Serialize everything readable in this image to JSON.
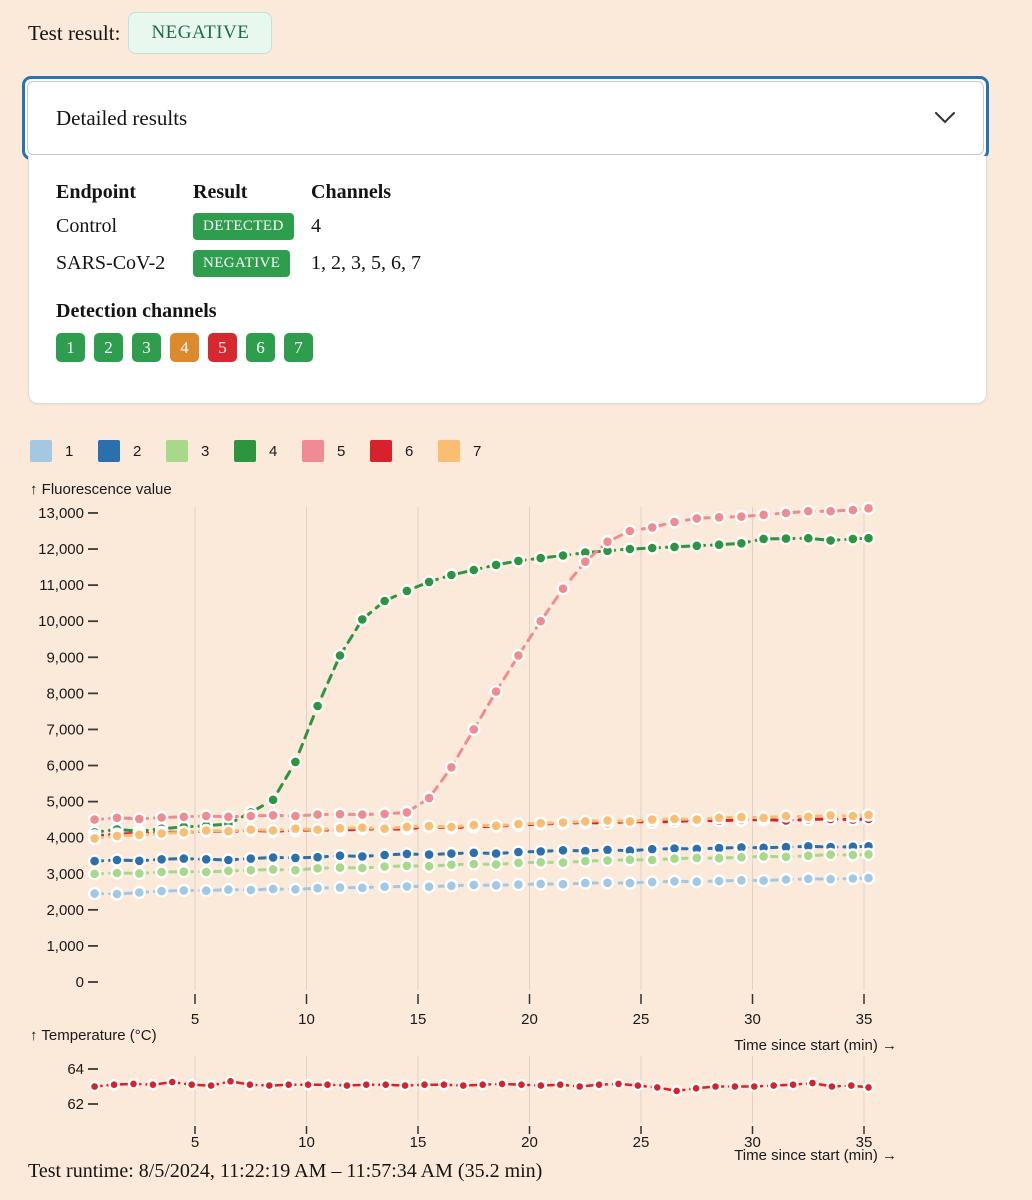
{
  "page": {
    "background": "#fbe9da"
  },
  "test_result": {
    "label": "Test result:",
    "value": "NEGATIVE",
    "badge_bg": "#e9f8ee",
    "badge_border": "#bfe5cc",
    "badge_text_color": "#1e6b45"
  },
  "details_panel": {
    "title": "Detailed results",
    "border_color": "#2474b5",
    "chevron_icon": "chevron-down"
  },
  "results_table": {
    "headers": [
      "Endpoint",
      "Result",
      "Channels"
    ],
    "result_badge_color": "#2e9e4e",
    "rows": [
      {
        "endpoint": "Control",
        "result": "DETECTED",
        "channels": "4"
      },
      {
        "endpoint": "SARS-CoV-2",
        "result": "NEGATIVE",
        "channels": "1, 2, 3, 5, 6, 7"
      }
    ]
  },
  "detection_channels": {
    "title": "Detection channels",
    "badges": [
      {
        "label": "1",
        "color": "#2e9e4e"
      },
      {
        "label": "2",
        "color": "#2e9e4e"
      },
      {
        "label": "3",
        "color": "#2e9e4e"
      },
      {
        "label": "4",
        "color": "#dd8a2e"
      },
      {
        "label": "5",
        "color": "#d7282f"
      },
      {
        "label": "6",
        "color": "#2e9e4e"
      },
      {
        "label": "7",
        "color": "#2e9e4e"
      }
    ]
  },
  "legend": {
    "items": [
      {
        "label": "1",
        "color": "#a3c8e3"
      },
      {
        "label": "2",
        "color": "#2c6fad"
      },
      {
        "label": "3",
        "color": "#a8d88a"
      },
      {
        "label": "4",
        "color": "#2d9440"
      },
      {
        "label": "5",
        "color": "#f08b92"
      },
      {
        "label": "6",
        "color": "#d7222b"
      },
      {
        "label": "7",
        "color": "#fbbd70"
      }
    ]
  },
  "chart_data": [
    {
      "type": "line",
      "ylabel": "↑ Fluorescence value",
      "xlabel": "Time since start (min) →",
      "grid": "vertical-only",
      "legend_position": "top-left",
      "ylim": [
        0,
        13500
      ],
      "yticks": [
        0,
        1000,
        2000,
        3000,
        4000,
        5000,
        6000,
        7000,
        8000,
        9000,
        10000,
        11000,
        12000,
        13000
      ],
      "xticks": [
        5,
        10,
        15,
        20,
        25,
        30,
        35
      ],
      "x": [
        0.5,
        1.5,
        2.5,
        3.5,
        4.5,
        5.5,
        6.5,
        7.5,
        8.5,
        9.5,
        10.5,
        11.5,
        12.5,
        13.5,
        14.5,
        15.5,
        16.5,
        17.5,
        18.5,
        19.5,
        20.5,
        21.5,
        22.5,
        23.5,
        24.5,
        25.5,
        26.5,
        27.5,
        28.5,
        29.5,
        30.5,
        31.5,
        32.5,
        33.5,
        34.5,
        35.2
      ],
      "series": [
        {
          "name": "1",
          "color": "#a3c8e3",
          "values": [
            2450,
            2440,
            2480,
            2520,
            2540,
            2530,
            2560,
            2550,
            2580,
            2570,
            2600,
            2620,
            2610,
            2640,
            2650,
            2640,
            2670,
            2690,
            2680,
            2700,
            2720,
            2710,
            2740,
            2750,
            2740,
            2770,
            2790,
            2780,
            2800,
            2820,
            2810,
            2840,
            2860,
            2850,
            2870,
            2880
          ]
        },
        {
          "name": "2",
          "color": "#2c6fad",
          "values": [
            3350,
            3380,
            3360,
            3400,
            3420,
            3400,
            3380,
            3420,
            3450,
            3440,
            3460,
            3500,
            3480,
            3520,
            3550,
            3530,
            3560,
            3580,
            3560,
            3600,
            3620,
            3650,
            3630,
            3660,
            3640,
            3680,
            3700,
            3690,
            3710,
            3730,
            3720,
            3740,
            3760,
            3740,
            3750,
            3760
          ]
        },
        {
          "name": "3",
          "color": "#a8d88a",
          "values": [
            3000,
            3020,
            3010,
            3050,
            3060,
            3050,
            3080,
            3100,
            3120,
            3100,
            3150,
            3170,
            3160,
            3200,
            3220,
            3210,
            3250,
            3270,
            3260,
            3300,
            3320,
            3310,
            3350,
            3370,
            3390,
            3380,
            3420,
            3440,
            3430,
            3460,
            3480,
            3470,
            3500,
            3530,
            3520,
            3540
          ]
        },
        {
          "name": "4",
          "color": "#2d9440",
          "values": [
            4150,
            4230,
            4180,
            4250,
            4300,
            4330,
            4380,
            4700,
            5050,
            6100,
            7650,
            9050,
            10050,
            10560,
            10840,
            11090,
            11280,
            11420,
            11560,
            11670,
            11750,
            11820,
            11900,
            11950,
            12000,
            12030,
            12060,
            12090,
            12120,
            12160,
            12280,
            12290,
            12300,
            12240,
            12280,
            12300
          ]
        },
        {
          "name": "5",
          "color": "#f08b92",
          "values": [
            4500,
            4550,
            4520,
            4560,
            4580,
            4600,
            4580,
            4600,
            4620,
            4600,
            4640,
            4650,
            4640,
            4660,
            4700,
            5100,
            5950,
            7000,
            8050,
            9050,
            10000,
            10900,
            11650,
            12200,
            12500,
            12600,
            12750,
            12850,
            12880,
            12900,
            12950,
            13000,
            13050,
            13050,
            13080,
            13130
          ]
        },
        {
          "name": "6",
          "color": "#d7222b",
          "values": [
            4050,
            4100,
            4120,
            4150,
            4150,
            4180,
            4170,
            4200,
            4180,
            4200,
            4220,
            4200,
            4250,
            4230,
            4250,
            4300,
            4280,
            4300,
            4320,
            4350,
            4380,
            4400,
            4420,
            4400,
            4450,
            4430,
            4450,
            4480,
            4470,
            4490,
            4500,
            4480,
            4500,
            4520,
            4500,
            4520
          ]
        },
        {
          "name": "7",
          "color": "#fbbd70",
          "values": [
            3980,
            4050,
            4080,
            4120,
            4150,
            4200,
            4180,
            4220,
            4200,
            4250,
            4220,
            4260,
            4280,
            4250,
            4300,
            4320,
            4300,
            4350,
            4330,
            4380,
            4400,
            4420,
            4450,
            4480,
            4450,
            4500,
            4520,
            4500,
            4550,
            4570,
            4550,
            4600,
            4580,
            4620,
            4600,
            4630
          ]
        }
      ]
    },
    {
      "type": "line",
      "ylabel": "↑ Temperature (°C)",
      "xlabel": "Time since start (min) →",
      "grid": "vertical-only",
      "ylim": [
        61.5,
        64.5
      ],
      "yticks": [
        62,
        64
      ],
      "xticks": [
        5,
        10,
        15,
        20,
        25,
        30,
        35
      ],
      "x": [
        0.5,
        1.37,
        2.24,
        3.11,
        3.98,
        4.85,
        5.72,
        6.59,
        7.46,
        8.33,
        9.2,
        10.07,
        10.94,
        11.81,
        12.68,
        13.55,
        14.42,
        15.29,
        16.16,
        17.03,
        17.9,
        18.77,
        19.64,
        20.51,
        21.38,
        22.25,
        23.12,
        23.99,
        24.86,
        25.73,
        26.6,
        27.47,
        28.34,
        29.21,
        30.08,
        30.95,
        31.82,
        32.69,
        33.56,
        34.43,
        35.2
      ],
      "series": [
        {
          "name": "temperature",
          "color": "#d7222b",
          "values": [
            63.0,
            63.1,
            63.15,
            63.1,
            63.25,
            63.1,
            63.05,
            63.3,
            63.1,
            63.05,
            63.1,
            63.1,
            63.1,
            63.05,
            63.1,
            63.1,
            63.05,
            63.1,
            63.1,
            63.05,
            63.1,
            63.15,
            63.1,
            63.05,
            63.1,
            63.0,
            63.1,
            63.15,
            63.05,
            62.95,
            62.75,
            62.9,
            63.0,
            63.0,
            63.0,
            63.05,
            63.1,
            63.2,
            63.0,
            63.05,
            62.95
          ]
        }
      ]
    }
  ],
  "footer": {
    "runtime": "Test runtime: 8/5/2024, 11:22:19 AM – 11:57:34 AM (35.2 min)"
  }
}
